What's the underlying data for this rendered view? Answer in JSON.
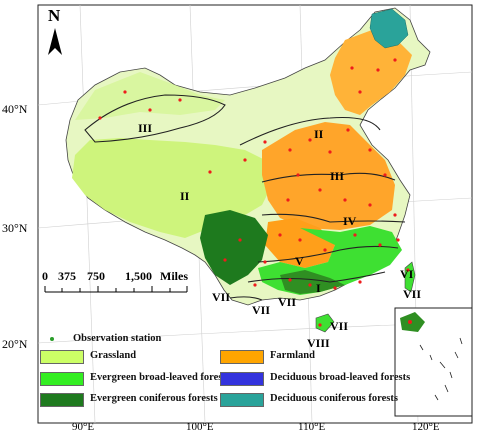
{
  "north_arrow": {
    "letter": "N"
  },
  "axes": {
    "lat_labels": [
      "40°N",
      "30°N",
      "20°N"
    ],
    "lon_labels": [
      "90°E",
      "100°E",
      "110°E",
      "120°E"
    ]
  },
  "scale_bar": {
    "ticks": [
      "0",
      "375",
      "750",
      "1,500"
    ],
    "unit": "Miles"
  },
  "zones": [
    "I",
    "II",
    "II",
    "III",
    "III",
    "IV",
    "V",
    "VI",
    "VII",
    "VII",
    "VII",
    "VII",
    "VII",
    "VIII"
  ],
  "legend": {
    "station": {
      "label": "Observation station",
      "color": "#2a9d2a"
    },
    "items": [
      {
        "label": "Grassland",
        "color": "#ccff66"
      },
      {
        "label": "Farmland",
        "color": "#ffa500"
      },
      {
        "label": "Evergreen broad-leaved forests",
        "color": "#33ee22"
      },
      {
        "label": "Deciduous broad-leaved forests",
        "color": "#3333dd"
      },
      {
        "label": "Evergreen coniferous forests",
        "color": "#1e7a1e"
      },
      {
        "label": "Deciduous coniferous forests",
        "color": "#2aa39a"
      }
    ]
  }
}
